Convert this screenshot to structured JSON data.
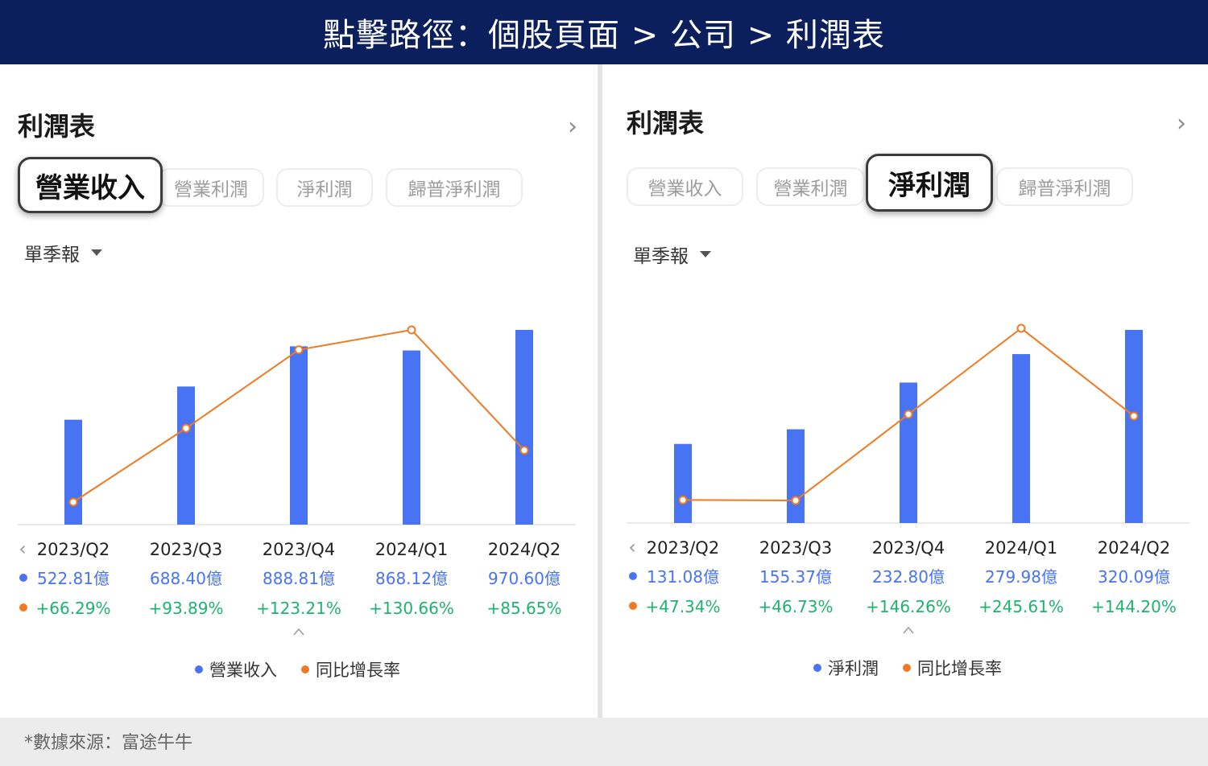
{
  "banner": {
    "text": "點擊路徑：個股頁面 > 公司 > 利潤表"
  },
  "colors": {
    "bar": "#4873f3",
    "line": "#f07a22",
    "growth": "#1fb26f",
    "value": "#4873f3",
    "banner": "#0b1f5c"
  },
  "icons": {
    "chevron_right": "chevron-right-icon",
    "chevron_left": "chevron-left-icon",
    "caret_down": "caret-down-icon",
    "chevron_up": "chevron-up-icon"
  },
  "footer": {
    "source": "*數據來源：富途牛牛"
  },
  "left": {
    "title": "利潤表",
    "tabs": [
      "營業收入",
      "營業利潤",
      "淨利潤",
      "歸普淨利潤"
    ],
    "active_tab": "營業收入",
    "period": "單季報",
    "legend": [
      "營業收入",
      "同比增長率"
    ],
    "value_labels": [
      "522.81億",
      "688.40億",
      "888.81億",
      "868.12億",
      "970.60億"
    ],
    "growth_labels": [
      "+66.29%",
      "+93.89%",
      "+123.21%",
      "+130.66%",
      "+85.65%"
    ]
  },
  "right": {
    "title": "利潤表",
    "tabs": [
      "營業收入",
      "營業利潤",
      "淨利潤",
      "歸普淨利潤"
    ],
    "active_tab": "淨利潤",
    "period": "單季報",
    "legend": [
      "淨利潤",
      "同比增長率"
    ],
    "value_labels": [
      "131.08億",
      "155.37億",
      "232.80億",
      "279.98億",
      "320.09億"
    ],
    "growth_labels": [
      "+47.34%",
      "+46.73%",
      "+146.26%",
      "+245.61%",
      "+144.20%"
    ]
  },
  "chart_data": [
    {
      "type": "bar",
      "title": "營業收入",
      "categories": [
        "2023/Q2",
        "2023/Q3",
        "2023/Q4",
        "2024/Q1",
        "2024/Q2"
      ],
      "series": [
        {
          "name": "營業收入",
          "type": "bar",
          "unit": "億",
          "values": [
            522.81,
            688.4,
            888.81,
            868.12,
            970.6
          ]
        },
        {
          "name": "同比增長率",
          "type": "line",
          "unit": "%",
          "values": [
            66.29,
            93.89,
            123.21,
            130.66,
            85.65
          ]
        }
      ]
    },
    {
      "type": "bar",
      "title": "淨利潤",
      "categories": [
        "2023/Q2",
        "2023/Q3",
        "2023/Q4",
        "2024/Q1",
        "2024/Q2"
      ],
      "series": [
        {
          "name": "淨利潤",
          "type": "bar",
          "unit": "億",
          "values": [
            131.08,
            155.37,
            232.8,
            279.98,
            320.09
          ]
        },
        {
          "name": "同比增長率",
          "type": "line",
          "unit": "%",
          "values": [
            47.34,
            46.73,
            146.26,
            245.61,
            144.2
          ]
        }
      ]
    }
  ]
}
